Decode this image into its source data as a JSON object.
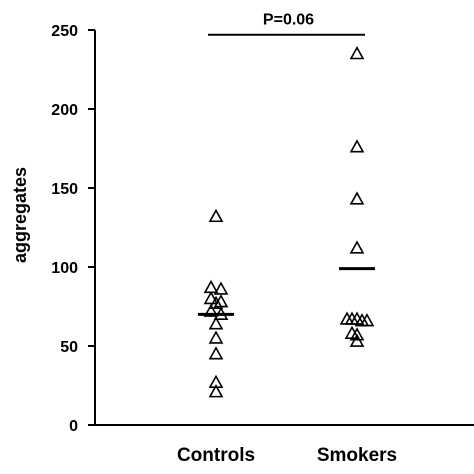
{
  "chart_data": {
    "type": "scatter",
    "title": "",
    "xlabel": "",
    "ylabel": "aggregates",
    "ylim": [
      0,
      250
    ],
    "yticks": [
      0,
      50,
      100,
      150,
      200,
      250
    ],
    "categories": [
      "Controls",
      "Smokers"
    ],
    "series": [
      {
        "category": "Controls",
        "mean": 70,
        "points": [
          {
            "value": 132,
            "jitter": 0
          },
          {
            "value": 87,
            "jitter": -1
          },
          {
            "value": 86,
            "jitter": 1
          },
          {
            "value": 80,
            "jitter": -1
          },
          {
            "value": 78,
            "jitter": 1
          },
          {
            "value": 77,
            "jitter": 0
          },
          {
            "value": 72,
            "jitter": -1
          },
          {
            "value": 70,
            "jitter": 1
          },
          {
            "value": 64,
            "jitter": 0
          },
          {
            "value": 55,
            "jitter": 0
          },
          {
            "value": 45,
            "jitter": 0
          },
          {
            "value": 27,
            "jitter": 0
          },
          {
            "value": 21,
            "jitter": 0
          }
        ]
      },
      {
        "category": "Smokers",
        "mean": 99,
        "points": [
          {
            "value": 235,
            "jitter": 0
          },
          {
            "value": 176,
            "jitter": 0
          },
          {
            "value": 143,
            "jitter": 0
          },
          {
            "value": 112,
            "jitter": 0
          },
          {
            "value": 67,
            "jitter": -2
          },
          {
            "value": 67,
            "jitter": -1
          },
          {
            "value": 67,
            "jitter": 0
          },
          {
            "value": 66,
            "jitter": 1
          },
          {
            "value": 66,
            "jitter": 2
          },
          {
            "value": 58,
            "jitter": -1
          },
          {
            "value": 57,
            "jitter": 0
          },
          {
            "value": 53,
            "jitter": 0
          }
        ]
      }
    ],
    "annotations": [
      {
        "text": "P=0.06",
        "from": "Controls",
        "to": "Smokers",
        "y": 247
      }
    ]
  }
}
